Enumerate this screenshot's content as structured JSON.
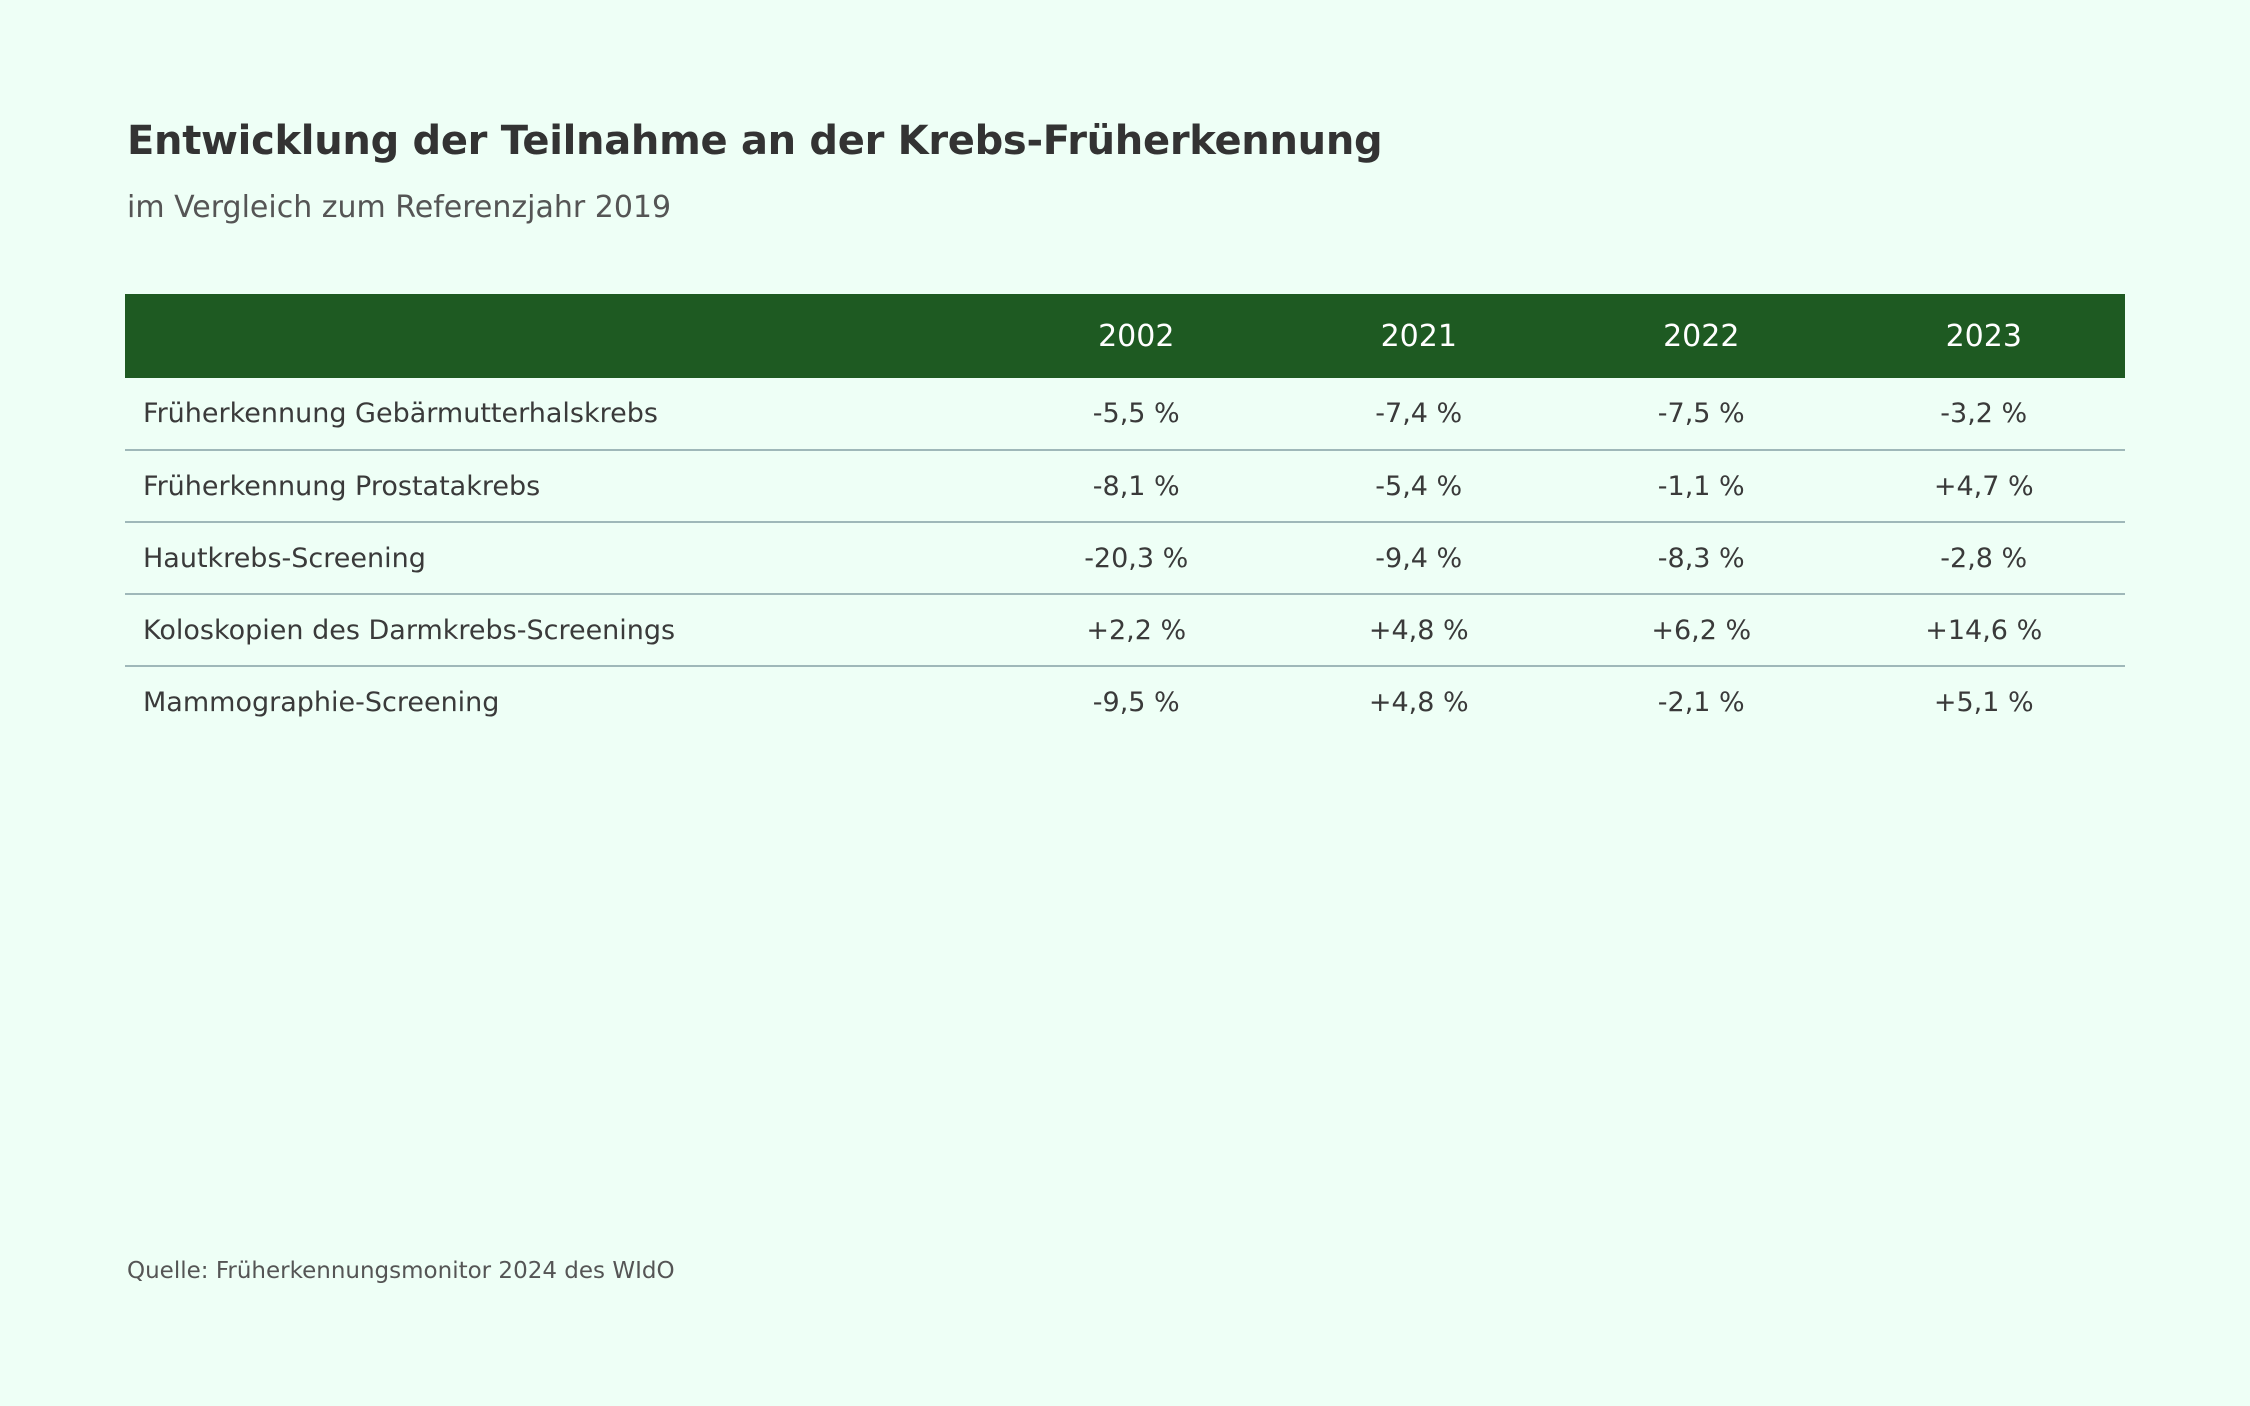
{
  "chart_data": {
    "type": "table",
    "title": "Entwicklung der Teilnahme an der Krebs-Früherkennung",
    "subtitle": "im Vergleich zum Referenzjahr 2019",
    "columns": [
      "2002",
      "2021",
      "2022",
      "2023"
    ],
    "rows": [
      {
        "label": "Früherkennung Gebärmutterhalskrebs",
        "values": [
          "-5,5 %",
          "-7,4 %",
          "-7,5 %",
          "-3,2 %"
        ]
      },
      {
        "label": "Früherkennung Prostatakrebs",
        "values": [
          "-8,1 %",
          "-5,4 %",
          "-1,1 %",
          "+4,7 %"
        ]
      },
      {
        "label": "Hautkrebs-Screening",
        "values": [
          "-20,3 %",
          "-9,4 %",
          "-8,3 %",
          "-2,8 %"
        ]
      },
      {
        "label": "Koloskopien des Darmkrebs-Screenings",
        "values": [
          "+2,2 %",
          "+4,8 %",
          "+6,2 %",
          "+14,6 %"
        ]
      },
      {
        "label": "Mammographie-Screening",
        "values": [
          "-9,5 %",
          "+4,8 %",
          "-2,1 %",
          "+5,1 %"
        ]
      }
    ],
    "source": "Quelle: Früherkennungsmonitor 2024 des WIdO"
  },
  "colors": {
    "background": "#eefff6",
    "header_background": "#1e5a22",
    "header_text": "#ffffff",
    "row_divider": "#9fb8b9"
  }
}
